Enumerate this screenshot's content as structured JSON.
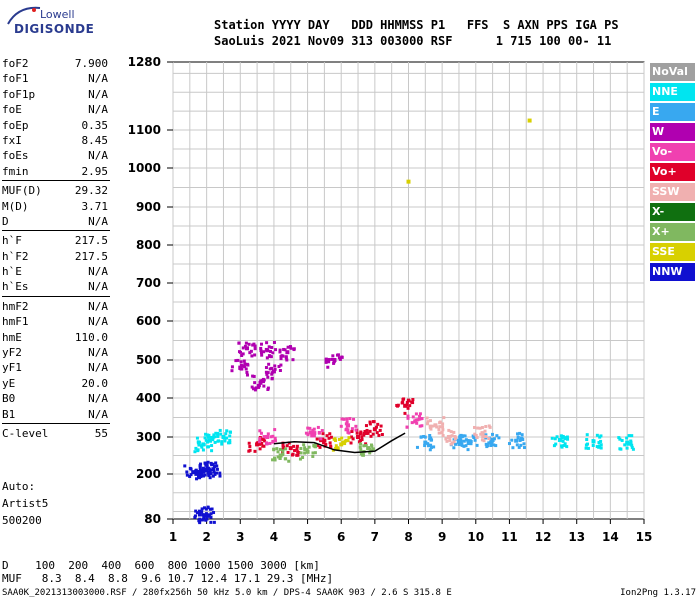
{
  "logo": {
    "line1": "Lowell",
    "line2": "DIGISONDE"
  },
  "header": {
    "line1": "Station YYYY DAY   DDD HHMMSS P1   FFS  S AXN PPS IGA PS",
    "line2": "SaoLuis 2021 Nov09 313 003000 RSF      1 715 100 00- 11"
  },
  "params": {
    "group1": [
      {
        "label": "foF2",
        "value": "7.900"
      },
      {
        "label": "foF1",
        "value": "N/A"
      },
      {
        "label": "foF1p",
        "value": "N/A"
      },
      {
        "label": "foE",
        "value": "N/A"
      },
      {
        "label": "foEp",
        "value": "0.35"
      },
      {
        "label": "fxI",
        "value": "8.45"
      },
      {
        "label": "foEs",
        "value": "N/A"
      },
      {
        "label": "fmin",
        "value": "2.95"
      }
    ],
    "group2": [
      {
        "label": "MUF(D)",
        "value": "29.32"
      },
      {
        "label": "M(D)",
        "value": "3.71"
      },
      {
        "label": "D",
        "value": "N/A"
      }
    ],
    "group3": [
      {
        "label": "h`F",
        "value": "217.5"
      },
      {
        "label": "h`F2",
        "value": "217.5"
      },
      {
        "label": "h`E",
        "value": "N/A"
      },
      {
        "label": "h`Es",
        "value": "N/A"
      }
    ],
    "group4": [
      {
        "label": "hmF2",
        "value": "N/A"
      },
      {
        "label": "hmF1",
        "value": "N/A"
      },
      {
        "label": "hmE",
        "value": "110.0"
      },
      {
        "label": "yF2",
        "value": "N/A"
      },
      {
        "label": "yF1",
        "value": "N/A"
      },
      {
        "label": "yE",
        "value": "20.0"
      },
      {
        "label": "B0",
        "value": "N/A"
      },
      {
        "label": "B1",
        "value": "N/A"
      }
    ],
    "group5": [
      {
        "label": "C-level",
        "value": "55"
      }
    ]
  },
  "notes": {
    "line1": "Auto:",
    "line2": "Artist5",
    "line3": "500200"
  },
  "legend": [
    {
      "label": "NoVal",
      "color": "#a0a0a0"
    },
    {
      "label": "NNE",
      "color": "#00e5f0"
    },
    {
      "label": "E",
      "color": "#38a8f0"
    },
    {
      "label": "W",
      "color": "#b000b0"
    },
    {
      "label": "Vo-",
      "color": "#f040b0"
    },
    {
      "label": "Vo+",
      "color": "#e0002a"
    },
    {
      "label": "SSW",
      "color": "#f0b0b0"
    },
    {
      "label": "X-",
      "color": "#107010"
    },
    {
      "label": "X+",
      "color": "#80b860"
    },
    {
      "label": "SSE",
      "color": "#d8d000"
    },
    {
      "label": "NNW",
      "color": "#1010d0"
    }
  ],
  "muf_table": {
    "row1": "D    100  200  400  600  800 1000 1500 3000 [km]",
    "row2": "MUF   8.3  8.4  8.8  9.6 10.7 12.4 17.1 29.3 [MHz]"
  },
  "footer": {
    "left": "SAA0K_2021313003000.RSF / 280fx256h 50 kHz 5.0 km / DPS-4 SAA0K 903 / 2.6 S 315.8 E",
    "right": "Ion2Png 1.3.17"
  },
  "chart_data": {
    "type": "scatter",
    "xlabel": "",
    "ylabel": "",
    "x_ticks": [
      "1",
      "2",
      "3",
      "4",
      "5",
      "6",
      "7",
      "8",
      "9",
      "10",
      "11",
      "12",
      "13",
      "14",
      "15"
    ],
    "y_ticks": [
      "80",
      "200",
      "300",
      "400",
      "500",
      "600",
      "700",
      "800",
      "900",
      "1000",
      "1100",
      "1280"
    ],
    "xlim": [
      1,
      15
    ],
    "ylim": [
      80,
      1280
    ],
    "grid": true,
    "legend_position": "right",
    "clusters": [
      {
        "name": "NNW",
        "points": [
          [
            1.6,
            205
          ],
          [
            1.9,
            208
          ],
          [
            2.0,
            210
          ],
          [
            2.2,
            213
          ],
          [
            1.8,
            92
          ],
          [
            2.0,
            90
          ]
        ]
      },
      {
        "name": "NNE",
        "points": [
          [
            1.9,
            280
          ],
          [
            2.1,
            290
          ],
          [
            2.5,
            300
          ],
          [
            12.5,
            292
          ],
          [
            13.5,
            288
          ],
          [
            14.5,
            285
          ]
        ]
      },
      {
        "name": "E",
        "points": [
          [
            8.5,
            285
          ],
          [
            9.5,
            290
          ],
          [
            10.5,
            292
          ],
          [
            11.2,
            290
          ],
          [
            9.8,
            285
          ]
        ]
      },
      {
        "name": "W",
        "points": [
          [
            3.2,
            530
          ],
          [
            3.8,
            525
          ],
          [
            4.4,
            520
          ],
          [
            3.0,
            480
          ],
          [
            4.0,
            470
          ],
          [
            3.6,
            440
          ],
          [
            5.8,
            500
          ]
        ]
      },
      {
        "name": "Vo+",
        "points": [
          [
            3.5,
            280
          ],
          [
            4.5,
            270
          ],
          [
            5.5,
            290
          ],
          [
            6.5,
            300
          ],
          [
            7.0,
            320
          ],
          [
            7.9,
            380
          ]
        ]
      },
      {
        "name": "Vo-",
        "points": [
          [
            3.8,
            300
          ],
          [
            5.2,
            310
          ],
          [
            6.2,
            330
          ],
          [
            8.2,
            340
          ]
        ]
      },
      {
        "name": "SSW",
        "points": [
          [
            9.2,
            300
          ],
          [
            10.2,
            310
          ],
          [
            8.8,
            330
          ]
        ]
      },
      {
        "name": "X+",
        "points": [
          [
            4.2,
            250
          ],
          [
            5.0,
            260
          ],
          [
            6.8,
            270
          ]
        ]
      },
      {
        "name": "SSE",
        "points": [
          [
            11.6,
            1125
          ],
          [
            8.0,
            965
          ],
          [
            6.0,
            280
          ]
        ]
      }
    ],
    "trace": [
      [
        4.0,
        282
      ],
      [
        4.6,
        287
      ],
      [
        5.2,
        285
      ],
      [
        5.8,
        265
      ],
      [
        6.4,
        258
      ],
      [
        7.0,
        262
      ],
      [
        7.5,
        290
      ],
      [
        7.9,
        310
      ]
    ]
  }
}
